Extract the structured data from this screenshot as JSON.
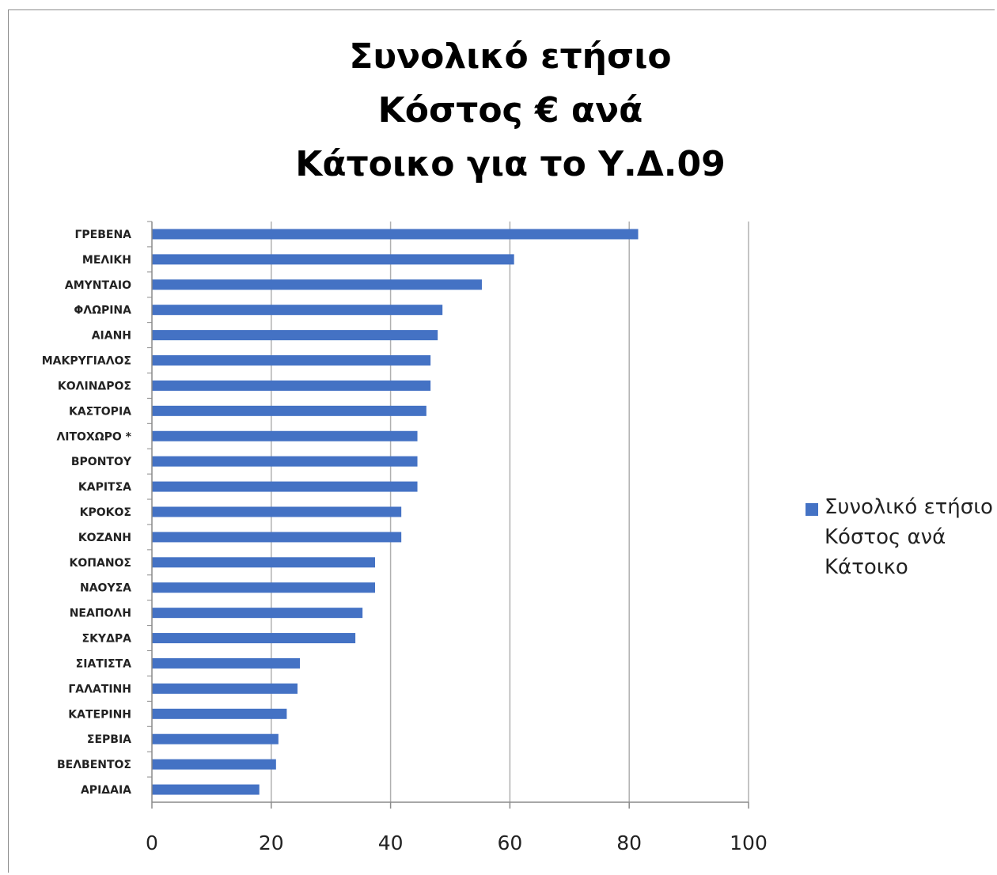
{
  "chart_data": {
    "type": "bar",
    "orientation": "horizontal",
    "title": "Συνολικό ετήσιο Κόστος € ανά Κάτοικο για το Υ.Δ.09",
    "title_lines": [
      "Συνολικό ετήσιο",
      "Κόστος € ανά",
      "Κάτοικο για το Υ.Δ.09"
    ],
    "categories": [
      "ΓΡΕΒΕΝΑ",
      "ΜΕΛΙΚΗ",
      "ΑΜΥΝΤΑΙΟ",
      "ΦΛΩΡΙΝΑ",
      "ΑΙΑΝΗ",
      "ΜΑΚΡΥΓΙΑΛΟΣ",
      "ΚΟΛΙΝΔΡΟΣ",
      "ΚΑΣΤΟΡΙΑ",
      "ΛΙΤΟΧΩΡΟ *",
      "ΒΡΟΝΤΟΥ",
      "ΚΑΡΙΤΣΑ",
      "ΚΡΟΚΟΣ",
      "ΚΟΖΑΝΗ",
      "ΚΟΠΑΝΟΣ",
      "ΝΑΟΥΣΑ",
      "ΝΕΑΠΟΛΗ",
      "ΣΚΥΔΡΑ",
      "ΣΙΑΤΙΣΤΑ",
      "ΓΑΛΑΤΙΝΗ",
      "ΚΑΤΕΡΙΝΗ",
      "ΣΕΡΒΙΑ",
      "ΒΕΛΒΕΝΤΟΣ",
      "ΑΡΙΔΑΙΑ"
    ],
    "series": [
      {
        "name": "Συνολικό ετήσιο Κόστος ανά Κάτοικο",
        "color": "#4472c4",
        "values": [
          81.5,
          60.7,
          55.3,
          48.7,
          47.9,
          46.7,
          46.7,
          46.0,
          44.5,
          44.5,
          44.5,
          41.8,
          41.8,
          37.4,
          37.4,
          35.3,
          34.1,
          24.8,
          24.4,
          22.6,
          21.2,
          20.8,
          18.0
        ]
      }
    ],
    "xlim": [
      0,
      100
    ],
    "xticks": [
      0,
      20,
      40,
      60,
      80,
      100
    ],
    "grid": "vertical",
    "legend": "right",
    "xlabel": "",
    "ylabel": ""
  }
}
